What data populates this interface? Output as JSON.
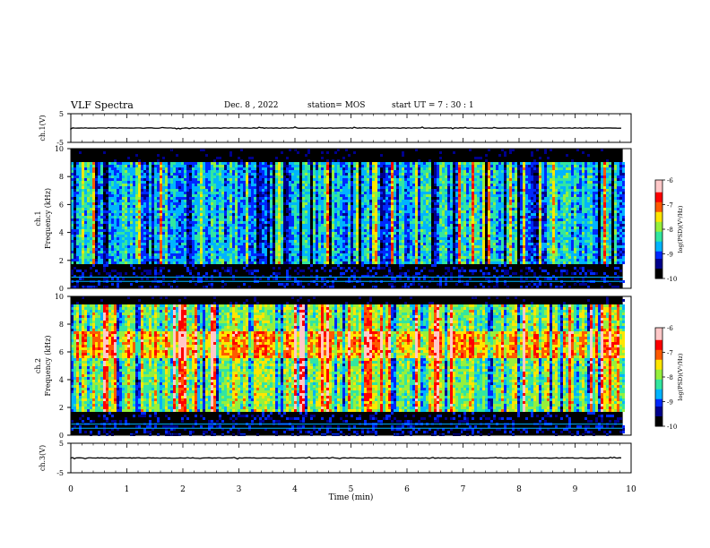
{
  "header": {
    "title": "VLF Spectra",
    "date": "Dec. 8  , 2022",
    "station": "station= MOS",
    "start": "start  UT  =   7 : 30 : 1"
  },
  "colors": {
    "background": "#ffffff",
    "axes": "#000000",
    "spectrogram_colormap": [
      "#000000",
      "#00008c",
      "#0028ff",
      "#00b4ff",
      "#32e6a0",
      "#96f03c",
      "#ffe600",
      "#ff5a00",
      "#ff0000",
      "#ffc8c8"
    ]
  },
  "chart_data": [
    {
      "type": "line",
      "name": "ch1-waveform",
      "ylabel": "ch.1(V)",
      "ylim": [
        -5,
        5
      ],
      "yticks": [
        5,
        -5
      ],
      "xlim": [
        0,
        10
      ],
      "series_level": 0,
      "trace_end_min": 9.85
    },
    {
      "type": "heatmap",
      "name": "ch1-spectrogram",
      "ylabel": "ch.1\nFrequency (kHz)",
      "ylim": [
        0,
        10
      ],
      "yticks": [
        0,
        2,
        4,
        6,
        8,
        10
      ],
      "xlim": [
        0,
        10
      ],
      "data_end_min": 9.85,
      "band_upper_edge_khz": 9.0,
      "black_gap_khz": [
        1.6,
        1.8
      ],
      "dominant_intensity": "blue-cyan-green",
      "colorbar": {
        "label": "log(PSD)(V²/Hz)",
        "ticks": [
          -6,
          -7,
          -8,
          -9,
          -10
        ]
      }
    },
    {
      "type": "heatmap",
      "name": "ch2-spectrogram",
      "ylabel": "ch.2\nFrequency (kHz)",
      "ylim": [
        0,
        10
      ],
      "yticks": [
        0,
        2,
        4,
        6,
        8,
        10
      ],
      "xlim": [
        0,
        10
      ],
      "data_end_min": 9.85,
      "band_upper_edge_khz": 9.5,
      "black_gap_khz": [
        1.5,
        1.7
      ],
      "peak_band_khz": [
        5.5,
        7.5
      ],
      "dominant_intensity": "green-yellow-red",
      "colorbar": {
        "label": "log(PSD)(V²/Hz)",
        "ticks": [
          -6,
          -7,
          -8,
          -9,
          -10
        ]
      }
    },
    {
      "type": "line",
      "name": "ch3-waveform",
      "ylabel": "ch.3(V)",
      "ylim": [
        -5,
        5
      ],
      "yticks": [
        5,
        -5
      ],
      "xlim": [
        0,
        10
      ],
      "series_level": 0,
      "trace_end_min": 9.85
    }
  ],
  "xaxis": {
    "label": "Time  (min)",
    "ticks": [
      0,
      1,
      2,
      3,
      4,
      5,
      6,
      7,
      8,
      9,
      10
    ]
  }
}
